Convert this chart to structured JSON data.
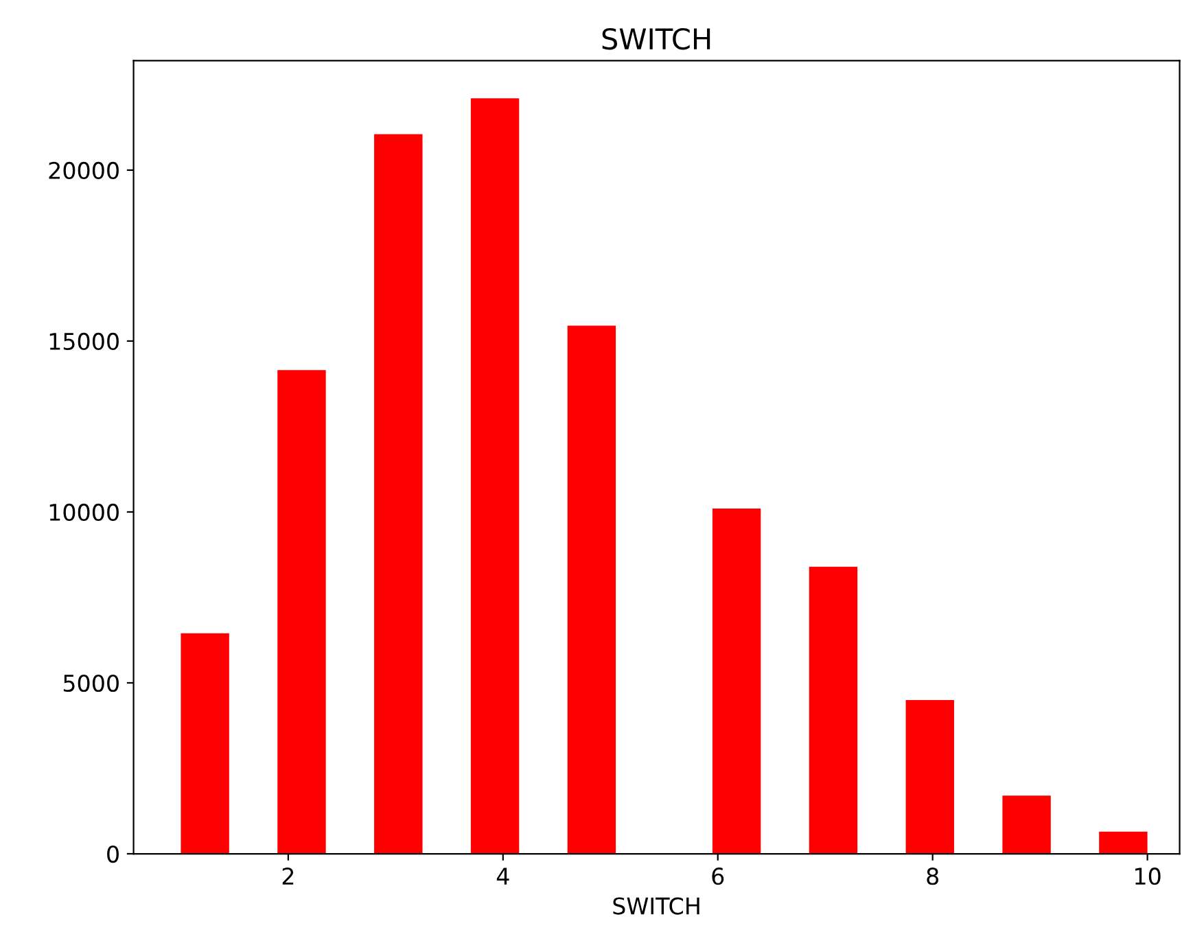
{
  "chart_data": {
    "type": "bar",
    "title": "SWITCH",
    "xlabel": "SWITCH",
    "x": [
      1.225,
      2.125,
      3.025,
      3.925,
      4.825,
      6.175,
      7.075,
      7.975,
      8.875,
      9.775
    ],
    "values": [
      6450,
      14150,
      21050,
      22100,
      15450,
      10100,
      8400,
      4500,
      1700,
      650
    ],
    "color": "#ff0000",
    "xlim": [
      0.56,
      10.3
    ],
    "ylim": [
      0,
      23200
    ],
    "xticks": [
      2,
      4,
      6,
      8,
      10
    ],
    "yticks": [
      0,
      5000,
      10000,
      15000,
      20000
    ],
    "grid": false
  }
}
